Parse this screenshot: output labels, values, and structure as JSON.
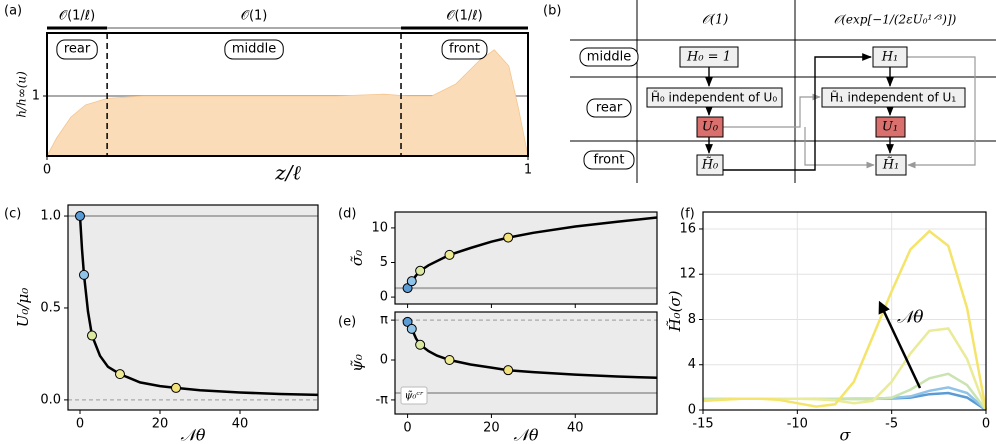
{
  "chart_data": [
    {
      "type": "area",
      "label": "(a)",
      "xlabel": "z/ℓ",
      "ylabel": "h/h∞(u)",
      "x": [
        0,
        0.02,
        0.05,
        0.08,
        0.125,
        0.2,
        0.3,
        0.4,
        0.5,
        0.6,
        0.7,
        0.75,
        0.8,
        0.85,
        0.9,
        0.93,
        0.96,
        0.98,
        1
      ],
      "values": [
        0,
        0.3,
        0.65,
        0.85,
        0.96,
        1.0,
        1.0,
        1.0,
        1.0,
        1.0,
        1.03,
        1.0,
        1.0,
        1.2,
        1.6,
        1.77,
        1.5,
        0.8,
        0
      ],
      "color": "#fbdcb8",
      "xlim": [
        0,
        1
      ],
      "ylim": [
        0,
        2.05
      ],
      "xticks": [
        0,
        1
      ],
      "yticks": [
        1
      ],
      "reference_lines": [
        {
          "value": 1,
          "style": "solid"
        }
      ],
      "regions": [
        {
          "name": "rear",
          "start": 0,
          "end": 0.125,
          "scale": "𝒪(1/ℓ)",
          "scale_color": "#000000"
        },
        {
          "name": "middle",
          "start": 0.125,
          "end": 0.736,
          "scale": "𝒪(1)",
          "scale_color": "#aaaaaa"
        },
        {
          "name": "front",
          "start": 0.736,
          "end": 1,
          "scale": "𝒪(1/ℓ)",
          "scale_color": "#000000"
        }
      ]
    },
    {
      "type": "line",
      "label": "(c)",
      "xlabel": "𝒩θ",
      "ylabel": "U₀/μ₀",
      "curve": {
        "x": [
          0,
          0.5,
          1,
          2,
          3,
          5,
          7,
          10,
          15,
          20,
          24,
          30,
          40,
          50,
          59.5
        ],
        "values": [
          1,
          0.82,
          0.68,
          0.48,
          0.35,
          0.24,
          0.18,
          0.14,
          0.095,
          0.075,
          0.065,
          0.052,
          0.04,
          0.032,
          0.027
        ]
      },
      "points": {
        "x": [
          0,
          1,
          3,
          10,
          24
        ],
        "values": [
          1.0,
          0.68,
          0.35,
          0.14,
          0.065
        ],
        "colors": [
          "#5b9bd5",
          "#8fc3e8",
          "#dbe9a0",
          "#eeeb94",
          "#f3e27a"
        ]
      },
      "xlim": [
        -3,
        59.5
      ],
      "ylim": [
        -0.055,
        1.06
      ],
      "xticks": [
        0,
        20,
        40
      ],
      "yticks": [
        {
          "value": 0,
          "label": "0.0"
        },
        {
          "value": 0.5,
          "label": "0.5"
        },
        {
          "value": 1,
          "label": "1.0"
        }
      ],
      "reference_lines": [
        {
          "value": 1,
          "style": "solid"
        },
        {
          "value": 0,
          "style": "dashed"
        }
      ],
      "background": "#ebebeb"
    },
    {
      "type": "line",
      "label": "(d)",
      "ylabel": "σ̃₀",
      "curve": {
        "x": [
          0,
          1,
          2,
          3,
          5,
          10,
          15,
          20,
          24,
          30,
          40,
          50,
          59.5
        ],
        "values": [
          1.3,
          2.3,
          3.1,
          3.8,
          4.6,
          6.1,
          7.1,
          8.0,
          8.6,
          9.3,
          10.2,
          10.9,
          11.5
        ]
      },
      "points": {
        "x": [
          0,
          1,
          3,
          10,
          24
        ],
        "values": [
          1.3,
          2.3,
          3.8,
          6.1,
          8.6
        ],
        "colors": [
          "#5b9bd5",
          "#8fc3e8",
          "#dbe9a0",
          "#eeeb94",
          "#f3e27a"
        ]
      },
      "xlim": [
        -3,
        59.5
      ],
      "ylim": [
        -1,
        12.3
      ],
      "xticks": [
        0,
        20,
        40
      ],
      "yticks": [
        0,
        5,
        10
      ],
      "reference_lines": [
        {
          "value": 1.3,
          "style": "solid"
        }
      ],
      "background": "#ebebeb"
    },
    {
      "type": "line",
      "label": "(e)",
      "xlabel": "𝒩θ",
      "ylabel": "ψ̃₀",
      "curve": {
        "x": [
          0,
          0.5,
          1,
          2,
          3,
          5,
          7,
          10,
          15,
          20,
          24,
          30,
          40,
          50,
          59.5
        ],
        "values": [
          3.0,
          2.7,
          2.45,
          1.7,
          1.2,
          0.7,
          0.35,
          0,
          -0.35,
          -0.6,
          -0.8,
          -0.95,
          -1.15,
          -1.3,
          -1.4
        ]
      },
      "points": {
        "x": [
          0,
          1,
          3,
          10,
          24
        ],
        "values": [
          3.0,
          2.45,
          1.2,
          0,
          -0.8
        ],
        "colors": [
          "#5b9bd5",
          "#8fc3e8",
          "#dbe9a0",
          "#eeeb94",
          "#f3e27a"
        ]
      },
      "xlim": [
        -3,
        59.5
      ],
      "ylim": [
        -4.25,
        3.78
      ],
      "xticks": [
        0,
        20,
        40
      ],
      "yticks": [
        {
          "value": 3.14159,
          "label": "π"
        },
        0,
        {
          "value": -3.14159,
          "label": "-π"
        }
      ],
      "reference_lines": [
        {
          "value": 3.14159,
          "style": "dashed"
        },
        {
          "value": -2.6,
          "style": "solid",
          "label": "ψ̃₀ᶜʳ"
        }
      ],
      "background": "#ebebeb"
    },
    {
      "type": "multiline",
      "label": "(f)",
      "xlabel": "σ",
      "ylabel": "H̃₀(σ)",
      "annotation": "𝒩θ",
      "x": [
        -15,
        -14,
        -13,
        -12,
        -11,
        -10,
        -9,
        -8,
        -7,
        -6,
        -5,
        -4,
        -3,
        -2,
        -1,
        0
      ],
      "series": [
        {
          "color": "#5b9bd5",
          "values": [
            1,
            1,
            1,
            1,
            1,
            1,
            1,
            1,
            1,
            1,
            1.02,
            1.1,
            1.4,
            1.5,
            1.1,
            0
          ]
        },
        {
          "color": "#8fc3e8",
          "values": [
            1,
            1,
            1,
            1,
            1,
            1,
            1,
            1,
            1,
            1,
            1.05,
            1.2,
            1.7,
            2.0,
            1.5,
            0
          ]
        },
        {
          "color": "#c9e4b0",
          "values": [
            1,
            1,
            1,
            1,
            1,
            1,
            1,
            1,
            0.95,
            0.95,
            1.1,
            1.8,
            2.8,
            3.2,
            2.2,
            0
          ]
        },
        {
          "color": "#eaeb98",
          "values": [
            0.8,
            0.9,
            1,
            1,
            1,
            1,
            0.95,
            0.85,
            0.6,
            0.8,
            2.5,
            5,
            7,
            7.2,
            4.5,
            0
          ]
        },
        {
          "color": "#f5e46a",
          "values": [
            0.8,
            0.9,
            1,
            1,
            0.9,
            0.6,
            0.3,
            0.5,
            2.5,
            6.5,
            10.5,
            14.2,
            15.8,
            14.5,
            9,
            0
          ]
        }
      ],
      "xlim": [
        -15,
        0
      ],
      "ylim": [
        0,
        17.5
      ],
      "xticks": [
        -15,
        -10,
        -5,
        0
      ],
      "yticks": [
        0,
        4,
        8,
        12,
        16
      ],
      "grid": true
    }
  ],
  "diagram": {
    "label": "(b)",
    "columns": [
      "𝒪(1)",
      "𝒪(exp[−1/(2εU₀¹ᐟ³)])"
    ],
    "rows": [
      "middle",
      "rear",
      "front"
    ],
    "nodes": [
      "H₀ = 1",
      "H̃₀ independent of U₀",
      "U₀",
      "H̃₀",
      "H₁",
      "H̃₁ independent of U₁",
      "U₁",
      "H̃₁"
    ]
  }
}
